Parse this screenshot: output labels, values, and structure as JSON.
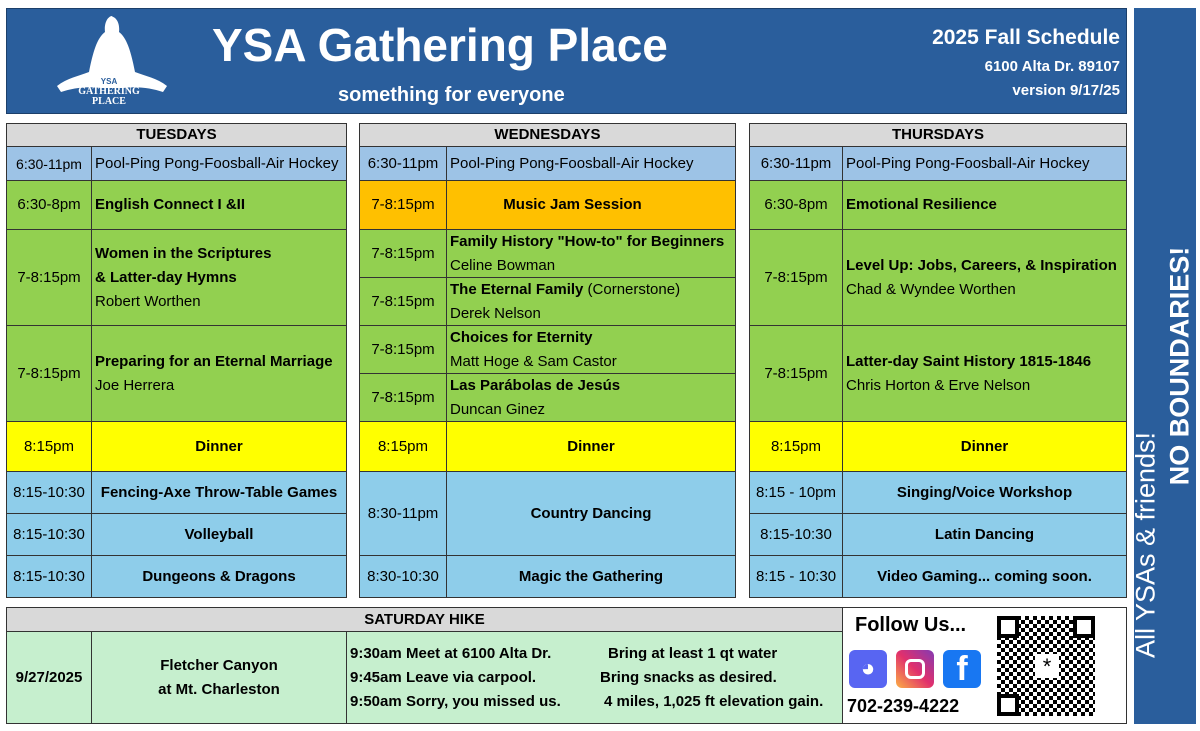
{
  "header": {
    "title": "YSA Gathering Place",
    "subtitle": "something for everyone",
    "schedule": "2025 Fall Schedule",
    "address": "6100 Alta Dr. 89107",
    "version": "version 9/17/25",
    "logo_text": "YSA GATHERING PLACE"
  },
  "side": {
    "line1": "NO BOUNDARIES!",
    "line2": "All  YSAs  &  friends!"
  },
  "colors": {
    "header": "#2a5e9c",
    "green": "#92d050",
    "blue": "#9dc3e6",
    "orange": "#ffc000",
    "yellow": "#ffff00",
    "hike": "#c6efce"
  },
  "tuesday": {
    "title": "TUESDAYS",
    "rows": [
      {
        "time": "6:30-11pm",
        "name": "Pool-Ping Pong-Foosball-Air Hockey"
      },
      {
        "time": "6:30-8pm",
        "name": "English Connect I &II"
      },
      {
        "time": "7-8:15pm",
        "name": "Women in the Scriptures",
        "name2": "& Latter-day Hymns",
        "teacher": "Robert Worthen"
      },
      {
        "time": "7-8:15pm",
        "name": "Preparing for an Eternal Marriage",
        "teacher": "Joe Herrera"
      },
      {
        "time": "8:15pm",
        "name": "Dinner"
      },
      {
        "time": "8:15-10:30",
        "name": "Fencing-Axe Throw-Table Games"
      },
      {
        "time": "8:15-10:30",
        "name": "Volleyball"
      },
      {
        "time": "8:15-10:30",
        "name": "Dungeons & Dragons"
      }
    ]
  },
  "wednesday": {
    "title": "WEDNESDAYS",
    "rows": [
      {
        "time": "6:30-11pm",
        "name": "Pool-Ping Pong-Foosball-Air Hockey"
      },
      {
        "time": "7-8:15pm",
        "name": "Music Jam Session"
      },
      {
        "time": "7-8:15pm",
        "name": "Family History \"How-to\" for Beginners",
        "teacher": "Celine Bowman"
      },
      {
        "time": "7-8:15pm",
        "name": "The Eternal Family",
        "note": " (Cornerstone)",
        "teacher": "Derek Nelson"
      },
      {
        "time": "7-8:15pm",
        "name": "Choices for Eternity",
        "teacher": "Matt Hoge & Sam Castor"
      },
      {
        "time": "7-8:15pm",
        "name": "Las Parábolas de Jesús",
        "teacher": "Duncan Ginez"
      },
      {
        "time": "8:15pm",
        "name": "Dinner"
      },
      {
        "time": "8:30-11pm",
        "name": "Country Dancing"
      },
      {
        "time": "8:30-10:30",
        "name": "Magic the Gathering"
      }
    ]
  },
  "thursday": {
    "title": "THURSDAYS",
    "rows": [
      {
        "time": "6:30-11pm",
        "name": "Pool-Ping Pong-Foosball-Air Hockey"
      },
      {
        "time": "6:30-8pm",
        "name": "Emotional Resilience"
      },
      {
        "time": "7-8:15pm",
        "name": "Level Up: Jobs, Careers, & Inspiration",
        "teacher": "Chad & Wyndee  Worthen"
      },
      {
        "time": "7-8:15pm",
        "name": "Latter-day Saint History 1815-1846",
        "teacher": "Chris Horton & Erve Nelson"
      },
      {
        "time": "8:15pm",
        "name": "Dinner"
      },
      {
        "time": "8:15 - 10pm",
        "name": "Singing/Voice  Workshop"
      },
      {
        "time": "8:15-10:30",
        "name": "Latin Dancing"
      },
      {
        "time": "8:15 - 10:30",
        "name": "Video Gaming...  coming soon."
      }
    ]
  },
  "hike": {
    "title": "SATURDAY  HIKE",
    "date": "9/27/2025",
    "place1": "Fletcher Canyon",
    "place2": "at Mt. Charleston",
    "schedule": [
      {
        "time": "9:30am",
        "text": "Meet at 6100 Alta Dr.",
        "note": "Bring at least 1 qt water"
      },
      {
        "time": "9:45am",
        "text": "Leave via carpool.",
        "note": "Bring snacks as desired."
      },
      {
        "time": "9:50am",
        "text": "Sorry, you missed us.",
        "note": "4 miles, 1,025 ft elevation gain."
      }
    ]
  },
  "follow": {
    "title": "Follow Us...",
    "phone": "702-239-4222",
    "icons": [
      "discord-icon",
      "instagram-icon",
      "facebook-icon",
      "qr-code"
    ]
  }
}
